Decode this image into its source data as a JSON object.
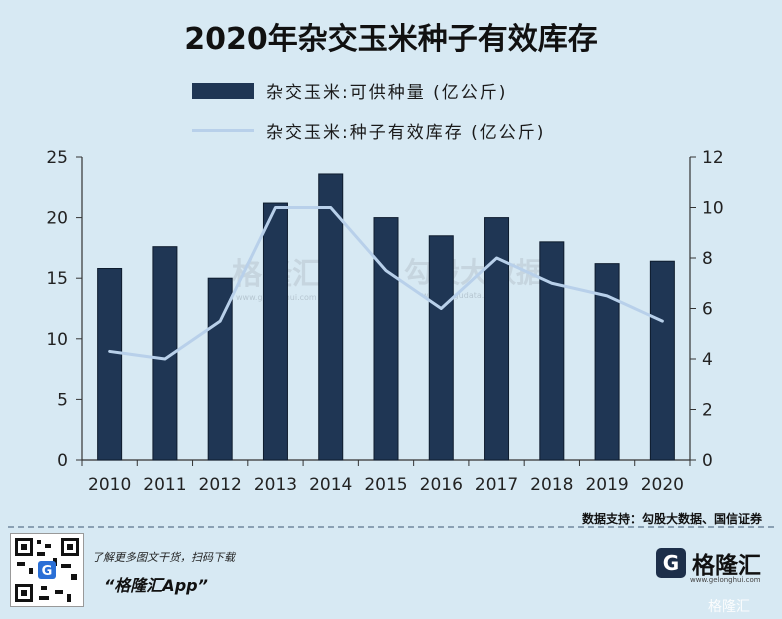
{
  "page": {
    "title": "2020年杂交玉米种子有效库存"
  },
  "legend": {
    "bar_label": "杂交玉米:可供种量  (亿公斤)",
    "line_label": "杂交玉米:种子有效库存 (亿公斤)"
  },
  "chart_data": {
    "type": "bar+line",
    "categories": [
      "2010",
      "2011",
      "2012",
      "2013",
      "2014",
      "2015",
      "2016",
      "2017",
      "2018",
      "2019",
      "2020"
    ],
    "series": [
      {
        "name": "杂交玉米:可供种量  (亿公斤)",
        "type": "bar",
        "axis": "left",
        "values": [
          15.8,
          17.6,
          15.0,
          21.2,
          23.6,
          20.0,
          18.5,
          20.0,
          18.0,
          16.2,
          16.4
        ]
      },
      {
        "name": "杂交玉米:种子有效库存 (亿公斤)",
        "type": "line",
        "axis": "right",
        "values": [
          4.3,
          4.0,
          5.5,
          10.0,
          10.0,
          7.5,
          6.0,
          8.0,
          7.0,
          6.5,
          5.5
        ]
      }
    ],
    "y_left": {
      "min": 0,
      "max": 25,
      "ticks": [
        0,
        5,
        10,
        15,
        20,
        25
      ]
    },
    "y_right": {
      "min": 0,
      "max": 12,
      "ticks": [
        0,
        2,
        4,
        6,
        8,
        10,
        12
      ]
    },
    "grid": false,
    "legend_position": "top",
    "colors": {
      "bar": "#1f3654",
      "bar_stroke": "#0e1c2e",
      "line": "#b8d0ea",
      "axis": "#333333"
    }
  },
  "source": "数据支持：勾股大数据、国信证券",
  "watermarks": [
    "格隆汇",
    "勾股大数据",
    "www.gelonghui.com",
    "www.gugudata.com"
  ],
  "footer": {
    "promo": "了解更多图文干货，扫码下载",
    "app": "“格隆汇App”",
    "logo_text": "格隆汇",
    "logo_url": "www.gelonghui.com",
    "bottom_watermark": "格隆汇"
  }
}
